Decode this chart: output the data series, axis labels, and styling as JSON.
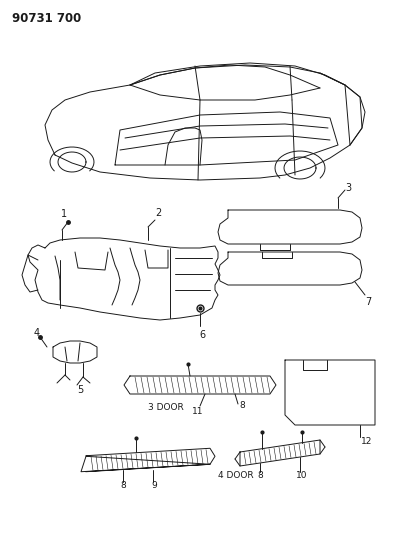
{
  "title": "90731 700",
  "background_color": "#ffffff",
  "line_color": "#1a1a1a",
  "figsize": [
    3.98,
    5.33
  ],
  "dpi": 100
}
